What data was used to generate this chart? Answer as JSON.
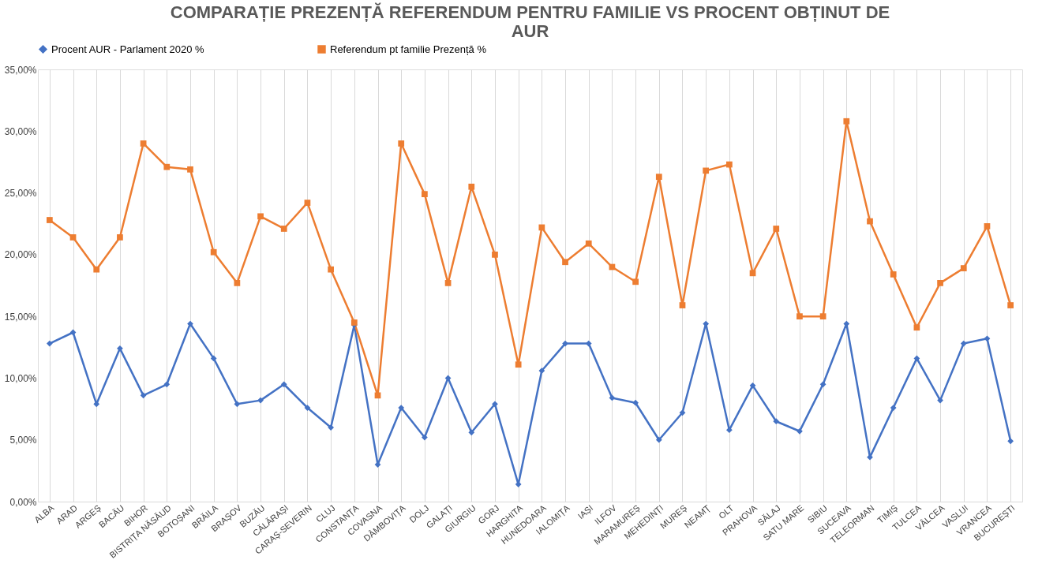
{
  "chart_data": {
    "type": "line",
    "title": "COMPARAȚIE PREZENȚĂ REFERENDUM PENTRU FAMILIE VS PROCENT OBȚINUT DE AUR",
    "categories": [
      "ALBA",
      "ARAD",
      "ARGEȘ",
      "BACĂU",
      "BIHOR",
      "BISTRIȚA NĂSĂUD",
      "BOTOȘANI",
      "BRĂILA",
      "BRAȘOV",
      "BUZĂU",
      "CĂLĂRAȘI",
      "CARAȘ-SEVERIN",
      "CLUJ",
      "CONSTANȚA",
      "COVASNA",
      "DÂMBOVIȚA",
      "DOLJ",
      "GALAȚI",
      "GIURGIU",
      "GORJ",
      "HARGHITA",
      "HUNEDOARA",
      "IALOMIȚA",
      "IAȘI",
      "ILFOV",
      "MARAMUREȘ",
      "MEHEDINȚI",
      "MUREȘ",
      "NEAMȚ",
      "OLT",
      "PRAHOVA",
      "SĂLAJ",
      "SATU MARE",
      "SIBIU",
      "SUCEAVA",
      "TELEORMAN",
      "TIMIȘ",
      "TULCEA",
      "VÂLCEA",
      "VASLUI",
      "VRANCEA",
      "BUCUREȘTI"
    ],
    "series": [
      {
        "name": "Procent AUR - Parlament 2020 %",
        "color": "#4472c4",
        "marker": "diamond",
        "values": [
          12.8,
          13.7,
          7.9,
          12.4,
          8.6,
          9.5,
          14.4,
          11.6,
          7.9,
          8.2,
          9.5,
          7.6,
          6.0,
          14.3,
          3.0,
          7.6,
          5.2,
          10.0,
          5.6,
          7.9,
          1.4,
          10.6,
          12.8,
          12.8,
          8.4,
          8.0,
          5.0,
          7.2,
          14.4,
          5.8,
          9.4,
          6.5,
          5.7,
          9.5,
          14.4,
          3.6,
          7.6,
          11.6,
          8.2,
          12.8,
          13.2,
          4.9
        ]
      },
      {
        "name": "Referendum pt familie Prezență      %",
        "color": "#ed7d31",
        "marker": "square",
        "values": [
          22.8,
          21.4,
          18.8,
          21.4,
          29.0,
          27.1,
          26.9,
          20.2,
          17.7,
          23.1,
          22.1,
          24.2,
          18.8,
          14.5,
          8.6,
          29.0,
          24.9,
          17.7,
          25.5,
          20.0,
          11.1,
          22.2,
          19.4,
          20.9,
          19.0,
          17.8,
          26.3,
          15.9,
          26.8,
          27.3,
          18.5,
          22.1,
          15.0,
          15.0,
          30.8,
          22.7,
          18.4,
          14.1,
          17.7,
          18.9,
          22.3,
          15.9
        ]
      }
    ],
    "ylim": [
      0,
      35
    ],
    "yticks": [
      {
        "value": 0,
        "label": "0,00%"
      },
      {
        "value": 5,
        "label": "5,00%"
      },
      {
        "value": 10,
        "label": "10,00%"
      },
      {
        "value": 15,
        "label": "15,00%"
      },
      {
        "value": 20,
        "label": "20,00%"
      },
      {
        "value": 25,
        "label": "25,00%"
      },
      {
        "value": 30,
        "label": "30,00%"
      },
      {
        "value": 35,
        "label": "35,00%"
      }
    ],
    "grid": "x",
    "legend": "top",
    "line_style": "solid"
  }
}
